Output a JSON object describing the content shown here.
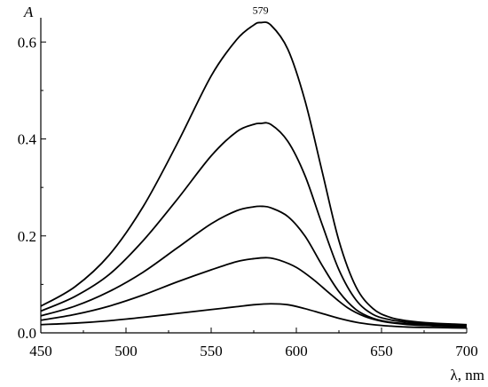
{
  "chart_data": {
    "type": "line",
    "title": "",
    "xlabel": "λ, nm",
    "ylabel": "A",
    "xlim": [
      450,
      700
    ],
    "ylim": [
      0,
      0.65
    ],
    "xticks": [
      450,
      500,
      550,
      600,
      650,
      700
    ],
    "yticks": [
      0.0,
      0.2,
      0.4,
      0.6
    ],
    "xtick_labels": [
      "450",
      "500",
      "550",
      "600",
      "650",
      "700"
    ],
    "ytick_labels": [
      "0.0",
      "0.2",
      "0.4",
      "0.6"
    ],
    "grid": false,
    "legend": "none",
    "annotations": [
      {
        "text": "579",
        "x": 579,
        "y": 0.64
      }
    ],
    "series": [
      {
        "x": [
          450,
          470,
          490,
          510,
          530,
          550,
          565,
          575,
          579,
          585,
          595,
          605,
          615,
          625,
          635,
          645,
          655,
          665,
          680,
          700
        ],
        "values": [
          0.055,
          0.095,
          0.16,
          0.26,
          0.39,
          0.53,
          0.605,
          0.635,
          0.64,
          0.635,
          0.585,
          0.48,
          0.335,
          0.19,
          0.095,
          0.05,
          0.032,
          0.025,
          0.02,
          0.017
        ]
      },
      {
        "x": [
          450,
          470,
          490,
          510,
          530,
          550,
          565,
          575,
          579,
          585,
          595,
          605,
          615,
          625,
          635,
          645,
          655,
          665,
          680,
          700
        ],
        "values": [
          0.045,
          0.075,
          0.12,
          0.19,
          0.275,
          0.365,
          0.415,
          0.43,
          0.432,
          0.43,
          0.395,
          0.325,
          0.225,
          0.13,
          0.068,
          0.038,
          0.027,
          0.022,
          0.018,
          0.015
        ]
      },
      {
        "x": [
          450,
          470,
          490,
          510,
          530,
          550,
          565,
          575,
          580,
          585,
          595,
          605,
          615,
          625,
          635,
          645,
          655,
          665,
          680,
          700
        ],
        "values": [
          0.035,
          0.055,
          0.085,
          0.125,
          0.175,
          0.225,
          0.252,
          0.26,
          0.261,
          0.258,
          0.24,
          0.2,
          0.14,
          0.085,
          0.048,
          0.03,
          0.022,
          0.019,
          0.016,
          0.014
        ]
      },
      {
        "x": [
          450,
          470,
          490,
          510,
          530,
          550,
          565,
          575,
          583,
          590,
          600,
          610,
          620,
          630,
          640,
          650,
          660,
          670,
          685,
          700
        ],
        "values": [
          0.026,
          0.038,
          0.055,
          0.078,
          0.105,
          0.13,
          0.147,
          0.153,
          0.155,
          0.15,
          0.135,
          0.11,
          0.08,
          0.052,
          0.034,
          0.024,
          0.019,
          0.016,
          0.014,
          0.013
        ]
      },
      {
        "x": [
          450,
          470,
          490,
          510,
          530,
          550,
          565,
          575,
          585,
          595,
          605,
          615,
          625,
          635,
          645,
          655,
          665,
          680,
          700
        ],
        "values": [
          0.017,
          0.02,
          0.025,
          0.032,
          0.04,
          0.048,
          0.054,
          0.058,
          0.06,
          0.058,
          0.05,
          0.04,
          0.03,
          0.022,
          0.017,
          0.014,
          0.012,
          0.011,
          0.01
        ]
      }
    ]
  }
}
